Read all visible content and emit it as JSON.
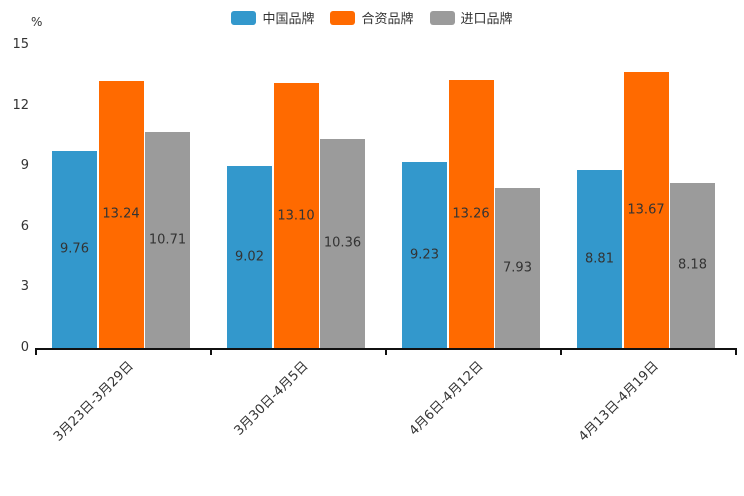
{
  "chart_data": {
    "type": "bar",
    "title": "",
    "unit": "%",
    "xlabel": "",
    "ylabel": "%",
    "categories": [
      "3月23日-3月29日",
      "3月30日-4月5日",
      "4月6日-4月12日",
      "4月13日-4月19日"
    ],
    "series": [
      {
        "name": "中国品牌",
        "color": "#3398cc",
        "values": [
          9.76,
          9.02,
          9.23,
          8.81
        ],
        "labels": [
          "9.76",
          "9.02",
          "9.23",
          "8.81"
        ]
      },
      {
        "name": "合资品牌",
        "color": "#ff6a00",
        "values": [
          13.24,
          13.1,
          13.26,
          13.67
        ],
        "labels": [
          "13.24",
          "13.10",
          "13.26",
          "13.67"
        ]
      },
      {
        "name": "进口品牌",
        "color": "#9b9b9b",
        "values": [
          10.71,
          10.36,
          7.93,
          8.18
        ],
        "labels": [
          "10.71",
          "10.36",
          "7.93",
          "8.18"
        ]
      }
    ],
    "ylim": [
      0,
      15
    ],
    "yticks": [
      0,
      3,
      6,
      9,
      12,
      15
    ],
    "legend_position": "top",
    "grid": false,
    "value_label_color": "#333333",
    "axis_color": "#111111"
  }
}
